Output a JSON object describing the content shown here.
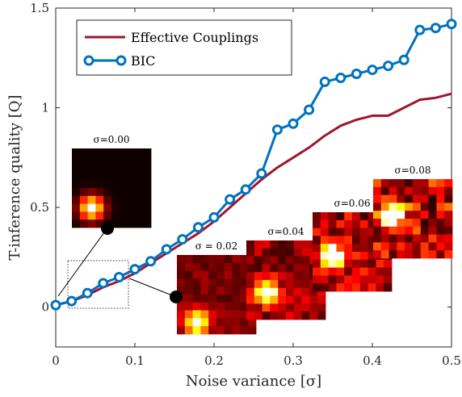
{
  "chart_data": {
    "type": "line",
    "xlabel": "Noise variance [σ]",
    "ylabel": "T-inference quality [Q]",
    "xlim": [
      0,
      0.5
    ],
    "ylim": [
      -0.2,
      1.5
    ],
    "xticks": [
      0,
      0.1,
      0.2,
      0.3,
      0.4,
      0.5
    ],
    "xtick_labels": [
      "0",
      "0.1",
      "0.2",
      "0.3",
      "0.4",
      "0.5"
    ],
    "yticks": [
      0,
      0.5,
      1,
      1.5
    ],
    "ytick_labels": [
      "0",
      "0.5",
      "1",
      "1.5"
    ],
    "grid": false,
    "legend": "top-left",
    "series": [
      {
        "name": "Effective Couplings",
        "color": "#a2142f",
        "marker": "none",
        "x": [
          0,
          0.02,
          0.04,
          0.06,
          0.08,
          0.1,
          0.12,
          0.14,
          0.16,
          0.18,
          0.2,
          0.22,
          0.24,
          0.26,
          0.28,
          0.3,
          0.32,
          0.34,
          0.36,
          0.38,
          0.4,
          0.42,
          0.44,
          0.46,
          0.48,
          0.5
        ],
        "y": [
          0.01,
          0.03,
          0.06,
          0.1,
          0.13,
          0.17,
          0.22,
          0.27,
          0.32,
          0.37,
          0.43,
          0.5,
          0.57,
          0.64,
          0.7,
          0.75,
          0.8,
          0.86,
          0.91,
          0.94,
          0.96,
          0.96,
          1.0,
          1.04,
          1.05,
          1.07
        ]
      },
      {
        "name": "BIC",
        "color": "#0072bd",
        "marker": "circle",
        "x": [
          0,
          0.02,
          0.04,
          0.06,
          0.08,
          0.1,
          0.12,
          0.14,
          0.16,
          0.18,
          0.2,
          0.22,
          0.24,
          0.26,
          0.28,
          0.3,
          0.32,
          0.34,
          0.36,
          0.38,
          0.4,
          0.42,
          0.44,
          0.46,
          0.48,
          0.5
        ],
        "y": [
          0.01,
          0.03,
          0.07,
          0.12,
          0.15,
          0.19,
          0.23,
          0.29,
          0.34,
          0.4,
          0.45,
          0.54,
          0.59,
          0.67,
          0.89,
          0.92,
          0.99,
          1.13,
          1.15,
          1.17,
          1.19,
          1.21,
          1.24,
          1.39,
          1.4,
          1.42
        ]
      }
    ],
    "insets": [
      {
        "label": "σ=0.00",
        "sigma": 0.0
      },
      {
        "label": "σ = 0.02",
        "sigma": 0.02
      },
      {
        "label": "σ=0.04",
        "sigma": 0.04
      },
      {
        "label": "σ=0.06",
        "sigma": 0.06
      },
      {
        "label": "σ=0.08",
        "sigma": 0.08
      }
    ]
  }
}
